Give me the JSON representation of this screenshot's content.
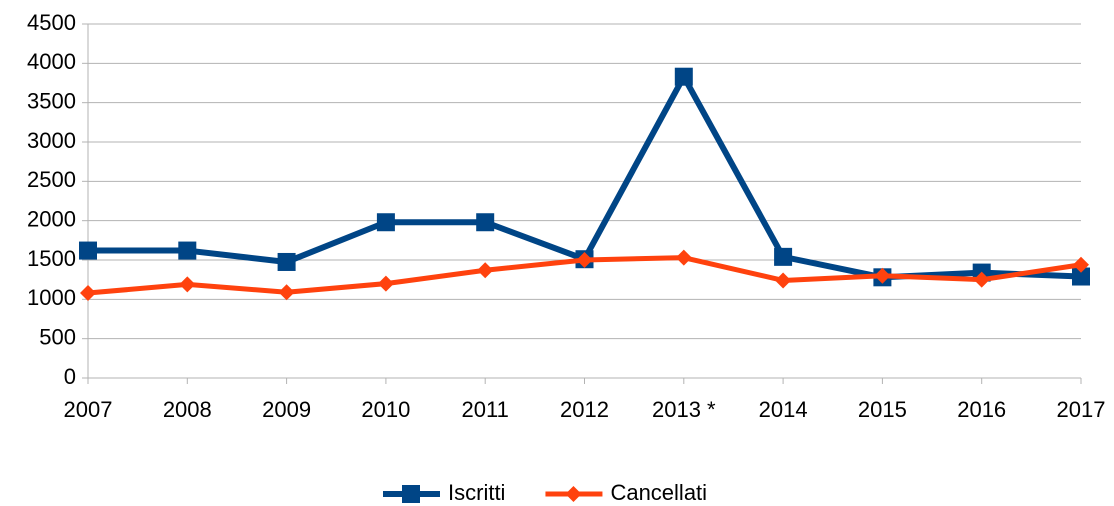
{
  "chart_data": {
    "type": "line",
    "categories": [
      "2007",
      "2008",
      "2009",
      "2010",
      "2011",
      "2012",
      "2013 *",
      "2014",
      "2015",
      "2016",
      "2017"
    ],
    "series": [
      {
        "name": "Iscritti",
        "color": "#004586",
        "marker": "square",
        "values": [
          1620,
          1620,
          1475,
          1980,
          1980,
          1510,
          3830,
          1540,
          1280,
          1340,
          1290
        ]
      },
      {
        "name": "Cancellati",
        "color": "#ff420e",
        "marker": "diamond",
        "values": [
          1080,
          1190,
          1090,
          1200,
          1370,
          1500,
          1530,
          1240,
          1300,
          1250,
          1440
        ]
      }
    ],
    "ylim": [
      0,
      4500
    ],
    "yticks": [
      0,
      500,
      1000,
      1500,
      2000,
      2500,
      3000,
      3500,
      4000,
      4500
    ],
    "grid": true,
    "legend": "bottom"
  }
}
